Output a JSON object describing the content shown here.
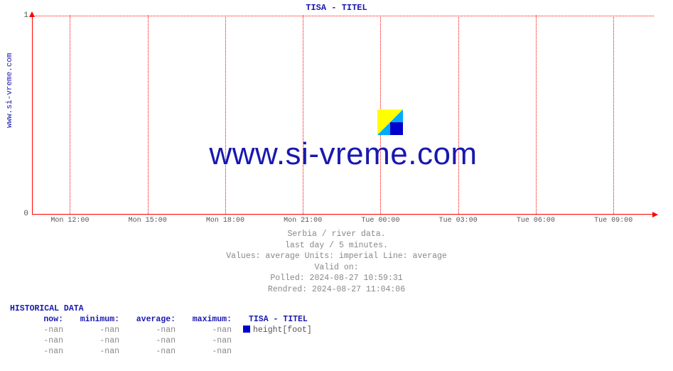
{
  "chart": {
    "title": "TISA -  TITEL",
    "side_label": "www.si-vreme.com",
    "type": "line",
    "background_color": "#ffffff",
    "grid_color": "#ff0000",
    "grid_style": "dotted",
    "axis_color": "#ff0000",
    "text_color_primary": "#1818b0",
    "text_color_muted": "#888888",
    "ylim": [
      0,
      1
    ],
    "yticks": [
      {
        "pos_pct": 100,
        "label": "0"
      },
      {
        "pos_pct": 0,
        "label": "1"
      }
    ],
    "xticks": [
      {
        "pos_pct": 6.0,
        "label": "Mon 12:00"
      },
      {
        "pos_pct": 18.5,
        "label": "Mon 15:00"
      },
      {
        "pos_pct": 31.0,
        "label": "Mon 18:00"
      },
      {
        "pos_pct": 43.5,
        "label": "Mon 21:00"
      },
      {
        "pos_pct": 56.0,
        "label": "Tue 00:00"
      },
      {
        "pos_pct": 68.5,
        "label": "Tue 03:00"
      },
      {
        "pos_pct": 81.0,
        "label": "Tue 06:00"
      },
      {
        "pos_pct": 93.5,
        "label": "Tue 09:00"
      }
    ],
    "watermark_text": "www.si-vreme.com",
    "watermark_icon_colors": {
      "tri1": "#ffff00",
      "tri2": "#00aaff",
      "tri3": "#0000cc"
    }
  },
  "meta": {
    "line1": "Serbia / river data.",
    "line2": "last day / 5 minutes.",
    "line3": "Values: average  Units: imperial  Line: average",
    "line4": "Valid on:",
    "line5": "Polled: 2024-08-27 10:59:31",
    "line6": "Rendred: 2024-08-27 11:04:06"
  },
  "historical": {
    "title": "HISTORICAL DATA",
    "headers": [
      "now:",
      "minimum:",
      "average:",
      "maximum:"
    ],
    "legend_series": "TISA -  TITEL",
    "legend_extra": "height[foot]",
    "legend_color": "#0000cc",
    "rows": [
      [
        "-nan",
        "-nan",
        "-nan",
        "-nan"
      ],
      [
        "-nan",
        "-nan",
        "-nan",
        "-nan"
      ],
      [
        "-nan",
        "-nan",
        "-nan",
        "-nan"
      ]
    ]
  }
}
